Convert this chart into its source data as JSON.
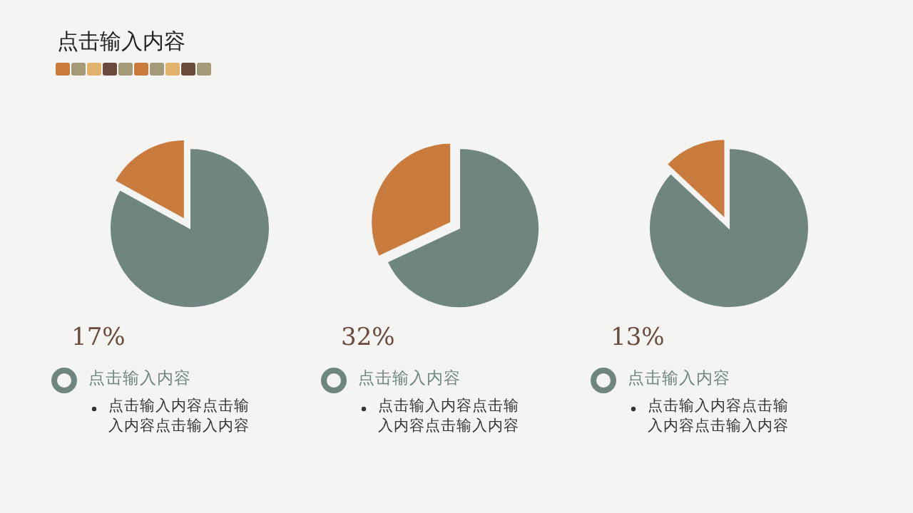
{
  "chart_data": [
    {
      "type": "pie",
      "title": "点击输入内容",
      "categories": [
        null,
        null
      ],
      "values": [
        17,
        83
      ],
      "colors": [
        "#c97b3e",
        "#6f8680"
      ],
      "annotations": [
        "17%",
        "点击输入内容",
        "点击输入内容点击输入内容点击输入内容"
      ]
    },
    {
      "type": "pie",
      "categories": [
        null,
        null
      ],
      "values": [
        32,
        68
      ],
      "colors": [
        "#c97b3e",
        "#6f8680"
      ],
      "annotations": [
        "32%",
        "点击输入内容",
        "点击输入内容点击输入内容点击输入内容"
      ]
    },
    {
      "type": "pie",
      "categories": [
        null,
        null
      ],
      "values": [
        13,
        87
      ],
      "colors": [
        "#c97b3e",
        "#6f8680"
      ],
      "annotations": [
        "13%",
        "点击输入内容",
        "点击输入内容点击输入内容点击输入内容"
      ]
    }
  ]
}
